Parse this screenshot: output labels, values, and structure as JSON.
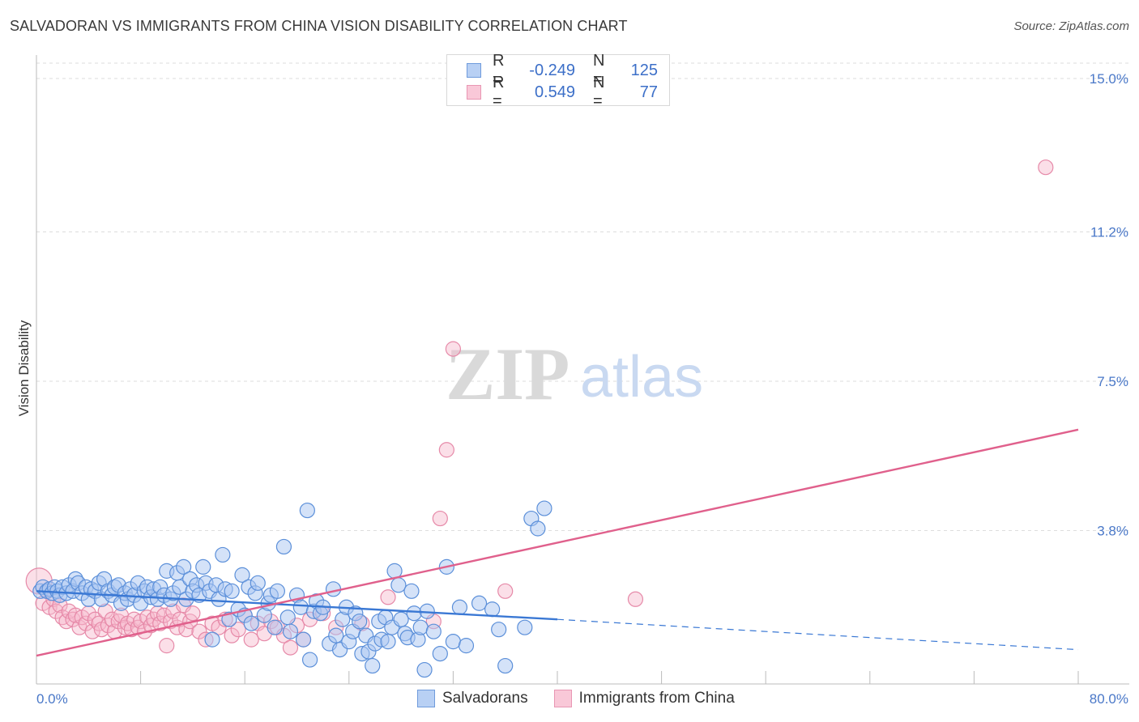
{
  "title": "SALVADORAN VS IMMIGRANTS FROM CHINA VISION DISABILITY CORRELATION CHART",
  "source": "Source: ZipAtlas.com",
  "watermark": {
    "zip": "ZIP",
    "atlas": "atlas"
  },
  "legend": {
    "rows": [
      {
        "r_label": "R =",
        "r_value": "-0.249",
        "n_label": "N =",
        "n_value": "125"
      },
      {
        "r_label": "R =",
        "r_value": "0.549",
        "n_label": "N =",
        "n_value": "77"
      }
    ]
  },
  "bottom_legend": [
    "Salvadorans",
    "Immigrants from China"
  ],
  "colors": {
    "blue_fill": "#a9c6f1",
    "blue_stroke": "#5b8fd9",
    "blue_line": "#3a78d4",
    "pink_fill": "#f6b8cc",
    "pink_stroke": "#e689a8",
    "pink_line": "#e0608c",
    "grid": "#dddddd",
    "tick_text": "#4a78c8"
  },
  "chart_data": {
    "type": "scatter",
    "title": "SALVADORAN VS IMMIGRANTS FROM CHINA VISION DISABILITY CORRELATION CHART",
    "xlabel": "",
    "ylabel": "Vision Disability",
    "xlim": [
      0,
      80
    ],
    "ylim": [
      0,
      15.5
    ],
    "x_tick_labels": [
      "0.0%",
      "80.0%"
    ],
    "y_ticks": [
      3.8,
      7.5,
      11.2,
      15.0
    ],
    "y_tick_labels": [
      "3.8%",
      "7.5%",
      "11.2%",
      "15.0%"
    ],
    "grid": true,
    "series": [
      {
        "name": "Salvadorans",
        "r": -0.249,
        "n": 125,
        "trend": {
          "x": [
            0,
            40
          ],
          "y": [
            2.3,
            1.6
          ],
          "dashed_to": [
            80,
            0.85
          ]
        },
        "points": [
          [
            0.3,
            2.3
          ],
          [
            0.5,
            2.4
          ],
          [
            0.8,
            2.3
          ],
          [
            1.0,
            2.35
          ],
          [
            1.2,
            2.25
          ],
          [
            1.4,
            2.4
          ],
          [
            1.6,
            2.3
          ],
          [
            1.8,
            2.2
          ],
          [
            2.0,
            2.4
          ],
          [
            2.3,
            2.25
          ],
          [
            2.5,
            2.45
          ],
          [
            2.8,
            2.3
          ],
          [
            3.0,
            2.6
          ],
          [
            3.2,
            2.5
          ],
          [
            3.5,
            2.25
          ],
          [
            3.8,
            2.4
          ],
          [
            4.0,
            2.1
          ],
          [
            4.2,
            2.35
          ],
          [
            4.5,
            2.3
          ],
          [
            4.8,
            2.5
          ],
          [
            5.0,
            2.1
          ],
          [
            5.2,
            2.6
          ],
          [
            5.5,
            2.3
          ],
          [
            5.8,
            2.2
          ],
          [
            6.0,
            2.4
          ],
          [
            6.3,
            2.45
          ],
          [
            6.5,
            2.0
          ],
          [
            6.8,
            2.25
          ],
          [
            7.0,
            2.1
          ],
          [
            7.2,
            2.35
          ],
          [
            7.5,
            2.2
          ],
          [
            7.8,
            2.5
          ],
          [
            8.0,
            2.0
          ],
          [
            8.3,
            2.3
          ],
          [
            8.5,
            2.4
          ],
          [
            8.8,
            2.15
          ],
          [
            9.0,
            2.35
          ],
          [
            9.3,
            2.1
          ],
          [
            9.5,
            2.4
          ],
          [
            9.8,
            2.2
          ],
          [
            10.0,
            2.8
          ],
          [
            10.3,
            2.1
          ],
          [
            10.5,
            2.25
          ],
          [
            10.8,
            2.75
          ],
          [
            11.0,
            2.4
          ],
          [
            11.3,
            2.9
          ],
          [
            11.5,
            2.1
          ],
          [
            11.8,
            2.6
          ],
          [
            12.0,
            2.3
          ],
          [
            12.3,
            2.45
          ],
          [
            12.5,
            2.2
          ],
          [
            12.8,
            2.9
          ],
          [
            13.0,
            2.5
          ],
          [
            13.3,
            2.3
          ],
          [
            13.5,
            1.1
          ],
          [
            13.8,
            2.45
          ],
          [
            14.0,
            2.1
          ],
          [
            14.3,
            3.2
          ],
          [
            14.5,
            2.35
          ],
          [
            14.8,
            1.6
          ],
          [
            15.0,
            2.3
          ],
          [
            15.5,
            1.85
          ],
          [
            15.8,
            2.7
          ],
          [
            16.0,
            1.7
          ],
          [
            16.3,
            2.4
          ],
          [
            16.5,
            1.5
          ],
          [
            16.8,
            2.25
          ],
          [
            17.0,
            2.5
          ],
          [
            17.5,
            1.7
          ],
          [
            17.8,
            2.0
          ],
          [
            18.0,
            2.2
          ],
          [
            18.3,
            1.4
          ],
          [
            18.5,
            2.3
          ],
          [
            19.0,
            3.4
          ],
          [
            19.3,
            1.65
          ],
          [
            19.5,
            1.3
          ],
          [
            20.0,
            2.2
          ],
          [
            20.3,
            1.9
          ],
          [
            20.5,
            1.1
          ],
          [
            20.8,
            4.3
          ],
          [
            21.0,
            0.6
          ],
          [
            21.3,
            1.8
          ],
          [
            21.5,
            2.05
          ],
          [
            21.8,
            1.75
          ],
          [
            22.0,
            1.9
          ],
          [
            22.5,
            1.0
          ],
          [
            22.8,
            2.35
          ],
          [
            23.0,
            1.2
          ],
          [
            23.3,
            0.85
          ],
          [
            23.5,
            1.6
          ],
          [
            23.8,
            1.9
          ],
          [
            24.0,
            1.05
          ],
          [
            24.3,
            1.3
          ],
          [
            24.5,
            1.75
          ],
          [
            24.8,
            1.55
          ],
          [
            25.0,
            0.75
          ],
          [
            25.3,
            1.2
          ],
          [
            25.5,
            0.8
          ],
          [
            25.8,
            0.45
          ],
          [
            26.0,
            1.0
          ],
          [
            26.3,
            1.55
          ],
          [
            26.5,
            1.1
          ],
          [
            26.8,
            1.65
          ],
          [
            27.0,
            1.05
          ],
          [
            27.3,
            1.4
          ],
          [
            27.5,
            2.8
          ],
          [
            27.8,
            2.45
          ],
          [
            28.0,
            1.6
          ],
          [
            28.3,
            1.25
          ],
          [
            28.5,
            1.15
          ],
          [
            28.8,
            2.3
          ],
          [
            29.0,
            1.75
          ],
          [
            29.3,
            1.1
          ],
          [
            29.5,
            1.4
          ],
          [
            29.8,
            0.35
          ],
          [
            30.0,
            1.8
          ],
          [
            30.5,
            1.3
          ],
          [
            31.0,
            0.75
          ],
          [
            31.5,
            2.9
          ],
          [
            32.0,
            1.05
          ],
          [
            32.5,
            1.9
          ],
          [
            33.0,
            0.95
          ],
          [
            34.0,
            2.0
          ],
          [
            35.0,
            1.85
          ],
          [
            35.5,
            1.35
          ],
          [
            36.0,
            0.45
          ],
          [
            37.5,
            1.4
          ],
          [
            38.0,
            4.1
          ],
          [
            38.5,
            3.85
          ],
          [
            39.0,
            4.35
          ]
        ]
      },
      {
        "name": "Immigrants from China",
        "r": 0.549,
        "n": 77,
        "trend": {
          "x": [
            0,
            80
          ],
          "y": [
            0.7,
            6.3
          ]
        },
        "points": [
          [
            0.2,
            2.55
          ],
          [
            0.5,
            2.0
          ],
          [
            0.8,
            2.3
          ],
          [
            1.0,
            1.9
          ],
          [
            1.3,
            2.1
          ],
          [
            1.5,
            1.8
          ],
          [
            1.8,
            1.95
          ],
          [
            2.0,
            1.65
          ],
          [
            2.3,
            1.55
          ],
          [
            2.5,
            1.8
          ],
          [
            2.8,
            1.6
          ],
          [
            3.0,
            1.7
          ],
          [
            3.3,
            1.4
          ],
          [
            3.5,
            1.65
          ],
          [
            3.8,
            1.5
          ],
          [
            4.0,
            1.75
          ],
          [
            4.3,
            1.3
          ],
          [
            4.5,
            1.6
          ],
          [
            4.8,
            1.5
          ],
          [
            5.0,
            1.35
          ],
          [
            5.3,
            1.8
          ],
          [
            5.5,
            1.45
          ],
          [
            5.8,
            1.6
          ],
          [
            6.0,
            1.3
          ],
          [
            6.3,
            1.55
          ],
          [
            6.5,
            1.7
          ],
          [
            6.8,
            1.4
          ],
          [
            7.0,
            1.5
          ],
          [
            7.3,
            1.35
          ],
          [
            7.5,
            1.6
          ],
          [
            7.8,
            1.4
          ],
          [
            8.0,
            1.55
          ],
          [
            8.3,
            1.3
          ],
          [
            8.5,
            1.65
          ],
          [
            8.8,
            1.45
          ],
          [
            9.0,
            1.6
          ],
          [
            9.3,
            1.75
          ],
          [
            9.5,
            1.5
          ],
          [
            9.8,
            1.7
          ],
          [
            10.0,
            0.95
          ],
          [
            10.3,
            1.55
          ],
          [
            10.5,
            1.8
          ],
          [
            10.8,
            1.4
          ],
          [
            11.0,
            1.6
          ],
          [
            11.3,
            1.95
          ],
          [
            11.5,
            1.35
          ],
          [
            11.8,
            1.55
          ],
          [
            12.0,
            1.75
          ],
          [
            12.5,
            1.3
          ],
          [
            13.0,
            1.1
          ],
          [
            13.5,
            1.5
          ],
          [
            14.0,
            1.4
          ],
          [
            14.5,
            1.6
          ],
          [
            15.0,
            1.2
          ],
          [
            15.5,
            1.35
          ],
          [
            16.0,
            1.7
          ],
          [
            16.5,
            1.1
          ],
          [
            17.0,
            1.5
          ],
          [
            17.5,
            1.25
          ],
          [
            18.0,
            1.55
          ],
          [
            18.5,
            1.4
          ],
          [
            19.0,
            1.2
          ],
          [
            19.5,
            0.9
          ],
          [
            20.0,
            1.45
          ],
          [
            20.5,
            1.1
          ],
          [
            21.0,
            1.6
          ],
          [
            22.0,
            1.75
          ],
          [
            23.0,
            1.4
          ],
          [
            25.0,
            1.5
          ],
          [
            27.0,
            2.15
          ],
          [
            30.5,
            1.55
          ],
          [
            31.0,
            4.1
          ],
          [
            31.5,
            5.8
          ],
          [
            32.0,
            8.3
          ],
          [
            36.0,
            2.3
          ],
          [
            46.0,
            2.1
          ],
          [
            77.5,
            12.8
          ]
        ]
      }
    ]
  }
}
